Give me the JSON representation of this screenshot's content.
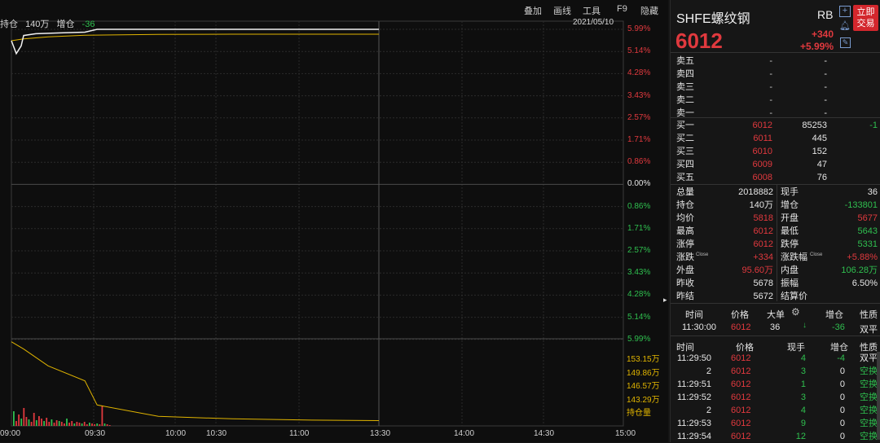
{
  "toolbar": {
    "overlay": "叠加",
    "draw": "画线",
    "tools": "工具",
    "f9": "F9",
    "hide": "隐藏"
  },
  "chart_header": {
    "position_label": "持仓",
    "position_value": "140万",
    "change_label": "增仓",
    "change_value": "-36",
    "date": "2021/05/10"
  },
  "right_axis_up": [
    "5.99%",
    "5.14%",
    "4.28%",
    "3.43%",
    "2.57%",
    "1.71%",
    "0.86%",
    "0.00%"
  ],
  "right_axis_down": [
    "0.86%",
    "1.71%",
    "2.57%",
    "3.43%",
    "4.28%",
    "5.14%",
    "5.99%"
  ],
  "volume_axis": [
    "153.15万",
    "149.86万",
    "146.57万",
    "143.29万",
    "持仓量"
  ],
  "time_axis": [
    "09:00",
    "09:30",
    "10:00",
    "10:30",
    "11:00",
    "13:30",
    "14:00",
    "14:30",
    "15:00"
  ],
  "chart_data": {
    "type": "line",
    "series": [
      {
        "x": [
          "09:00",
          "09:02",
          "09:04",
          "09:05",
          "09:10",
          "09:20",
          "09:30",
          "09:35",
          "09:40",
          "10:00",
          "11:30"
        ],
        "values": [
          5.55,
          5.05,
          5.35,
          5.75,
          5.82,
          5.85,
          5.88,
          5.99,
          5.99,
          5.99,
          5.99
        ]
      },
      {
        "x": [
          "09:00",
          "09:05",
          "09:15",
          "09:30",
          "10:00",
          "10:30",
          "11:00",
          "11:30"
        ],
        "values": [
          5.55,
          5.62,
          5.7,
          5.76,
          5.79,
          5.8,
          5.8,
          5.8
        ]
      },
      {
        "x": [
          "09:00",
          "09:05",
          "09:15",
          "09:30",
          "09:35",
          "10:00",
          "10:30",
          "11:00",
          "11:30"
        ],
        "values": [
          156.0,
          154.8,
          152.0,
          149.5,
          145.5,
          143.6,
          143.2,
          143.0,
          142.9
        ]
      }
    ],
    "volume_bars": [
      18,
      6,
      14,
      9,
      22,
      11,
      8,
      5,
      16,
      7,
      12,
      9,
      6,
      10,
      5,
      8,
      4,
      7,
      6,
      5,
      3,
      9,
      4,
      6,
      3,
      5,
      4,
      3,
      5,
      2,
      4,
      3,
      2,
      3,
      2,
      25,
      3,
      2,
      1
    ]
  },
  "side": {
    "symbol": "SHFE螺纹钢",
    "code": "RB",
    "trade_btn_line1": "立即",
    "trade_btn_line2": "交易",
    "price": "6012",
    "change": "+340",
    "change_pct": "+5.99%",
    "asks": [
      {
        "label": "卖五",
        "price": "-",
        "vol": "-"
      },
      {
        "label": "卖四",
        "price": "-",
        "vol": "-"
      },
      {
        "label": "卖三",
        "price": "-",
        "vol": "-"
      },
      {
        "label": "卖二",
        "price": "-",
        "vol": "-"
      },
      {
        "label": "卖一",
        "price": "-",
        "vol": "-"
      }
    ],
    "bids": [
      {
        "label": "买一",
        "price": "6012",
        "vol": "85253",
        "chg": "-1"
      },
      {
        "label": "买二",
        "price": "6011",
        "vol": "445",
        "chg": ""
      },
      {
        "label": "买三",
        "price": "6010",
        "vol": "152",
        "chg": ""
      },
      {
        "label": "买四",
        "price": "6009",
        "vol": "47",
        "chg": ""
      },
      {
        "label": "买五",
        "price": "6008",
        "vol": "76",
        "chg": ""
      }
    ],
    "stats": [
      {
        "l1": "总量",
        "v1": "2018882",
        "l2": "现手",
        "v2": "36",
        "c1": "white",
        "c2": "white"
      },
      {
        "l1": "持仓",
        "v1": "140万",
        "l2": "增仓",
        "v2": "-133801",
        "c1": "white",
        "c2": "green"
      },
      {
        "l1": "均价",
        "v1": "5818",
        "l2": "开盘",
        "v2": "5677",
        "c1": "red",
        "c2": "red"
      },
      {
        "l1": "最高",
        "v1": "6012",
        "l2": "最低",
        "v2": "5643",
        "c1": "red",
        "c2": "green"
      },
      {
        "l1": "涨停",
        "v1": "6012",
        "l2": "跌停",
        "v2": "5331",
        "c1": "red",
        "c2": "green"
      },
      {
        "l1": "涨跌",
        "v1": "+334",
        "l2": "涨跌幅",
        "v2": "+5.88%",
        "c1": "red",
        "c2": "red",
        "sup1": "Close",
        "sup2": "Close"
      },
      {
        "l1": "外盘",
        "v1": "95.60万",
        "l2": "内盘",
        "v2": "106.28万",
        "c1": "red",
        "c2": "green"
      },
      {
        "l1": "昨收",
        "v1": "5678",
        "l2": "振幅",
        "v2": "6.50%",
        "c1": "white",
        "c2": "white"
      },
      {
        "l1": "昨结",
        "v1": "5672",
        "l2": "结算价",
        "v2": "",
        "c1": "white",
        "c2": "white"
      }
    ],
    "bigtrade_headers": [
      "时间",
      "价格",
      "大单",
      "增仓",
      "性质"
    ],
    "bigtrade": {
      "time": "11:30:00",
      "price": "6012",
      "vol": "36",
      "chg": "-36",
      "nature": "双平"
    },
    "ticks_headers": [
      "时间",
      "价格",
      "现手",
      "增仓",
      "性质"
    ],
    "ticks": [
      {
        "time": "11:29:50",
        "price": "6012",
        "vol": "4",
        "chg": "-4",
        "nature": "双平",
        "vc": "green",
        "cc": "green",
        "nc": "white"
      },
      {
        "time": "2",
        "price": "6012",
        "vol": "3",
        "chg": "0",
        "nature": "空换",
        "vc": "green",
        "cc": "white",
        "nc": "green"
      },
      {
        "time": "11:29:51",
        "price": "6012",
        "vol": "1",
        "chg": "0",
        "nature": "空换",
        "vc": "green",
        "cc": "white",
        "nc": "green"
      },
      {
        "time": "11:29:52",
        "price": "6012",
        "vol": "3",
        "chg": "0",
        "nature": "空换",
        "vc": "green",
        "cc": "white",
        "nc": "green"
      },
      {
        "time": "2",
        "price": "6012",
        "vol": "4",
        "chg": "0",
        "nature": "空换",
        "vc": "green",
        "cc": "white",
        "nc": "green"
      },
      {
        "time": "11:29:53",
        "price": "6012",
        "vol": "9",
        "chg": "0",
        "nature": "空换",
        "vc": "green",
        "cc": "white",
        "nc": "green"
      },
      {
        "time": "11:29:54",
        "price": "6012",
        "vol": "12",
        "chg": "0",
        "nature": "空换",
        "vc": "green",
        "cc": "white",
        "nc": "green"
      }
    ]
  }
}
